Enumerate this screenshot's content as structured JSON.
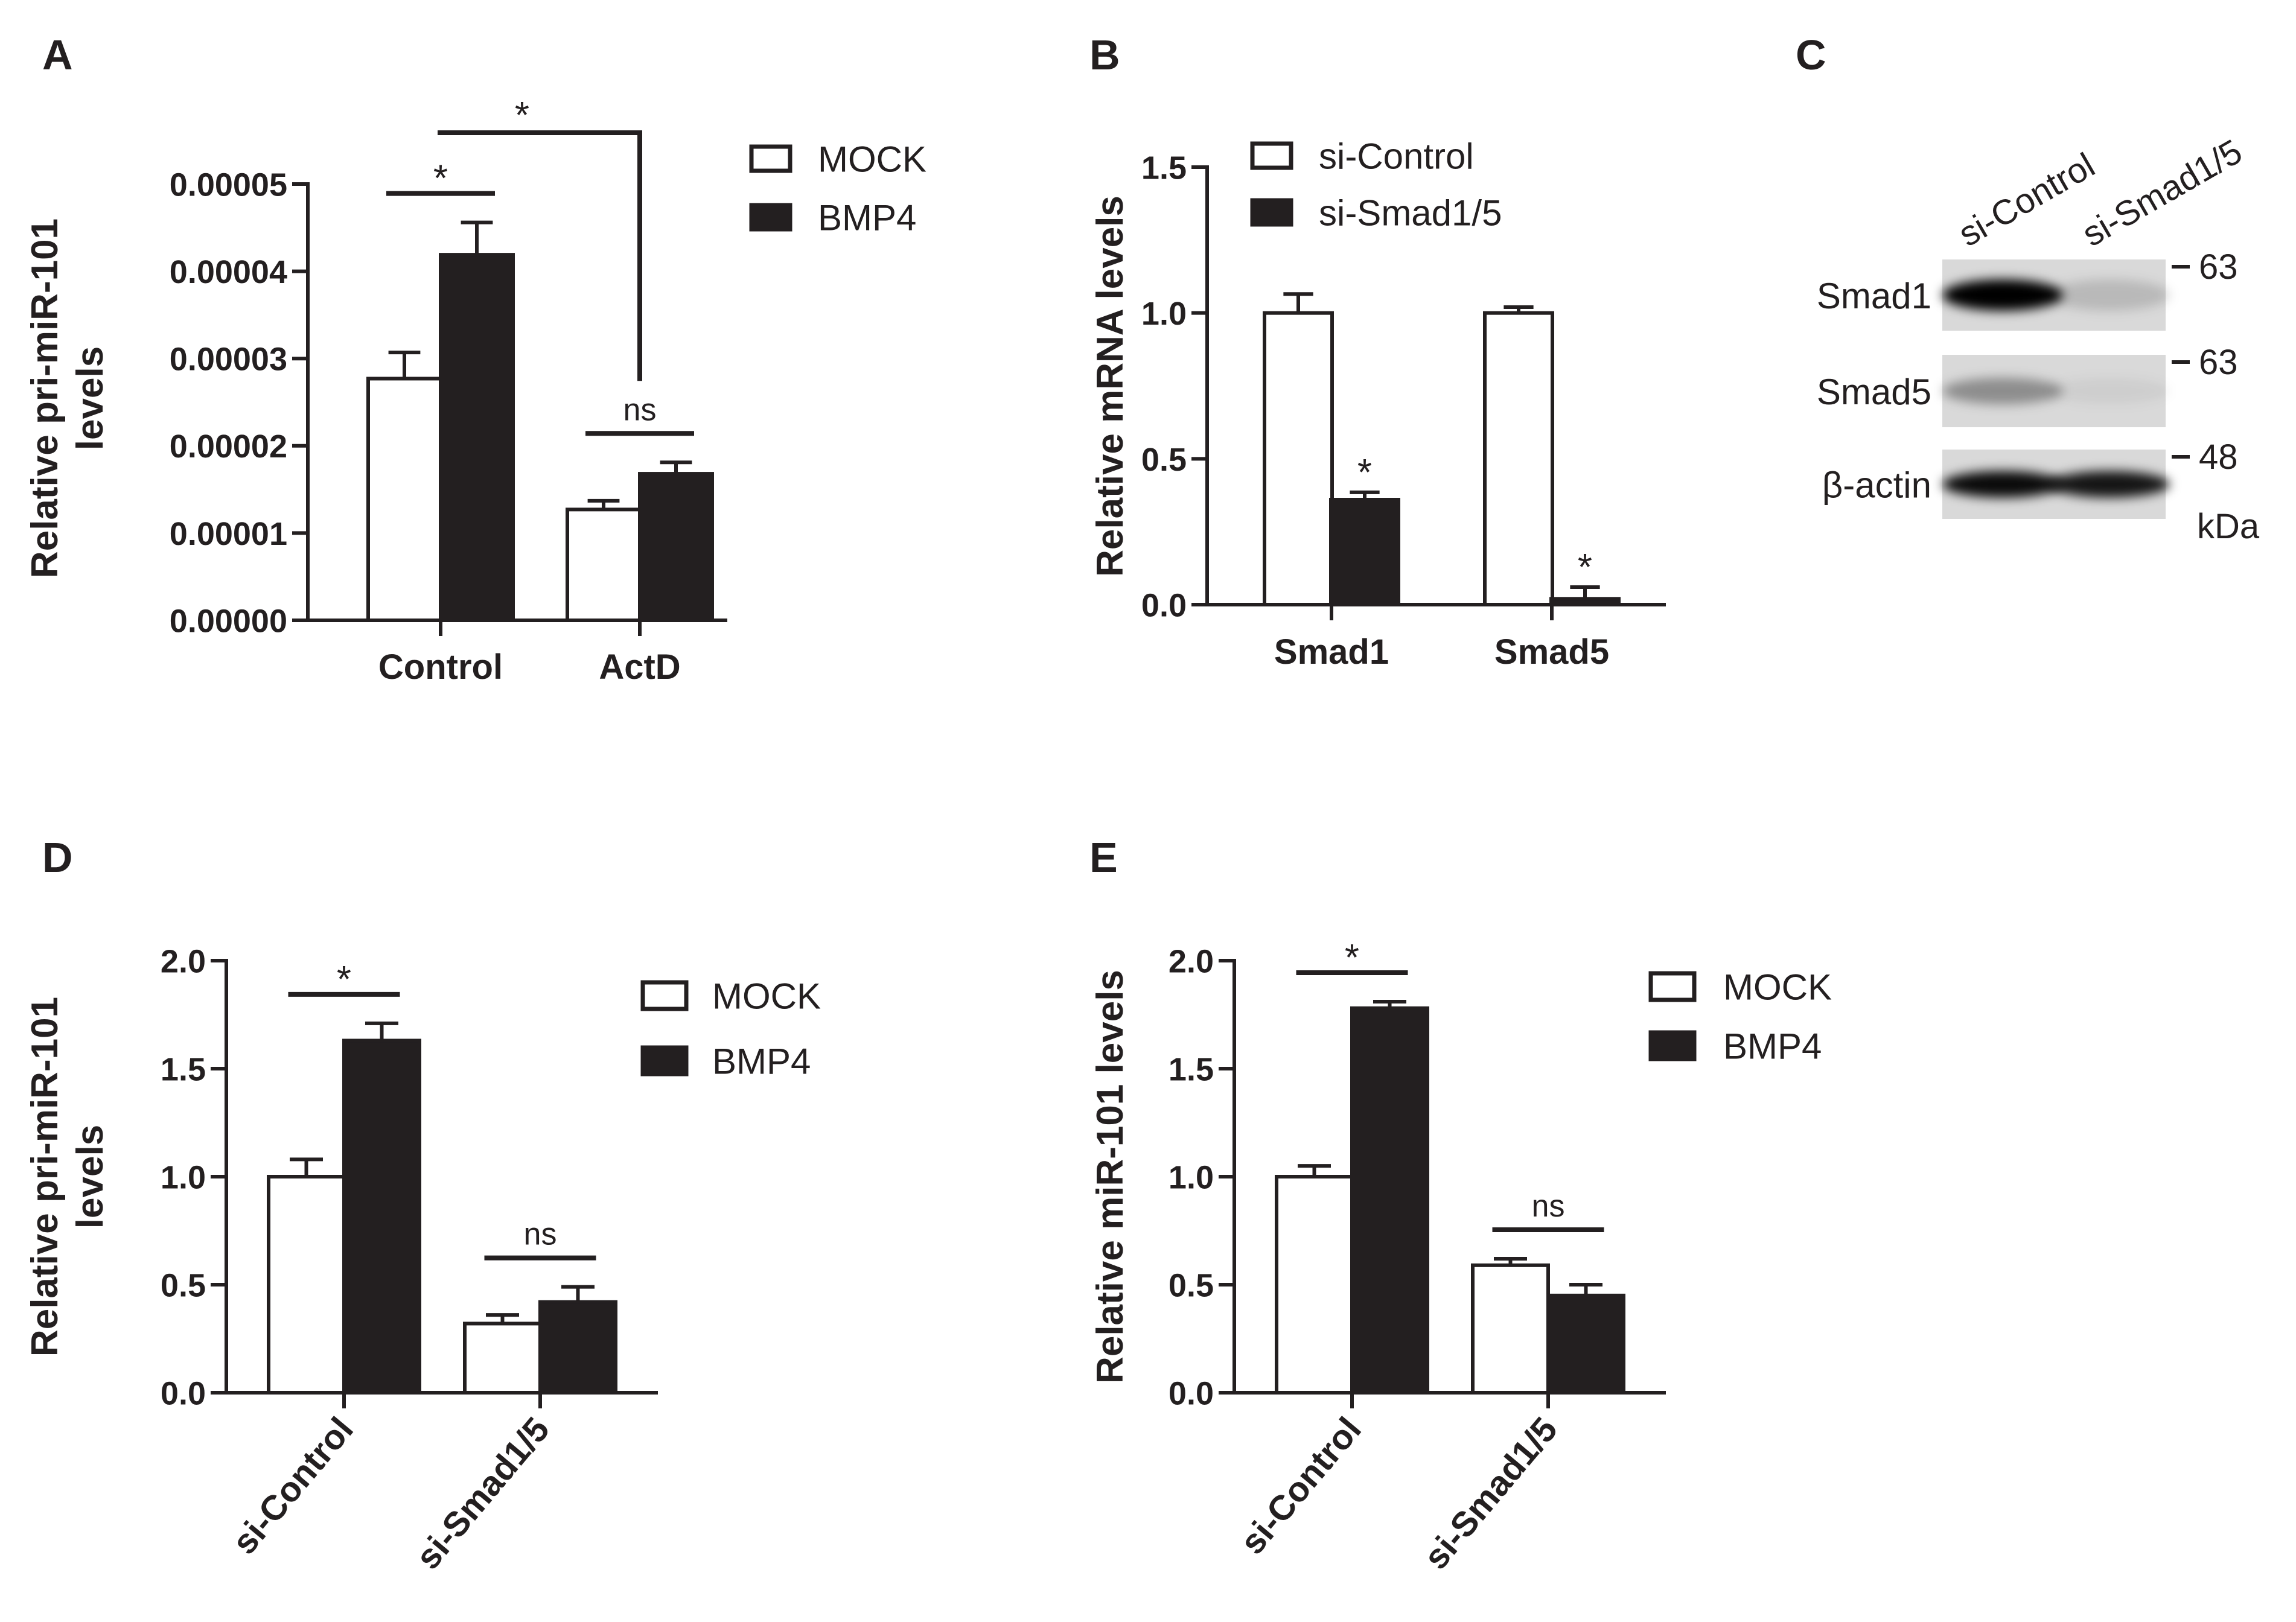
{
  "colors": {
    "filled": "#231f20",
    "open": "#ffffff",
    "stroke": "#231f20",
    "blot_bg": "#d9d9d9"
  },
  "chart_data": [
    {
      "id": "A",
      "panel_label": "A",
      "type": "bar",
      "ylabel": [
        "Relative pri-miR-101",
        "levels"
      ],
      "ylim": [
        0,
        5e-05
      ],
      "yticks": [
        0,
        1e-05,
        2e-05,
        3e-05,
        4e-05,
        5e-05
      ],
      "yticklabels": [
        "0.00000",
        "0.00001",
        "0.00002",
        "0.00003",
        "0.00004",
        "0.00005"
      ],
      "categories": [
        "Control",
        "ActD"
      ],
      "series": [
        {
          "name": "MOCK",
          "fill": "open",
          "values": [
            2.77e-05,
            1.27e-05
          ],
          "errors": [
            3e-06,
            1e-06
          ]
        },
        {
          "name": "BMP4",
          "fill": "filled",
          "values": [
            4.19e-05,
            1.68e-05
          ],
          "errors": [
            3.7e-06,
            1.3e-06
          ]
        }
      ],
      "significance": [
        {
          "label": "*",
          "kind": "pair",
          "category": 0
        },
        {
          "label": "ns",
          "kind": "pair",
          "category": 1
        },
        {
          "label": "*",
          "kind": "bracket",
          "from_category": 0,
          "to_category": 1
        }
      ]
    },
    {
      "id": "B",
      "panel_label": "B",
      "type": "bar",
      "ylabel": [
        "Relative mRNA levels"
      ],
      "ylim": [
        0,
        1.5
      ],
      "yticks": [
        0,
        0.5,
        1.0,
        1.5
      ],
      "yticklabels": [
        "0.0",
        "0.5",
        "1.0",
        "1.5"
      ],
      "categories": [
        "Smad1",
        "Smad5"
      ],
      "series": [
        {
          "name": "si-Control",
          "fill": "open",
          "values": [
            1.0,
            1.0
          ],
          "errors": [
            0.065,
            0.02
          ]
        },
        {
          "name": "si-Smad1/5",
          "fill": "filled",
          "values": [
            0.36,
            0.02
          ],
          "errors": [
            0.025,
            0.04
          ]
        }
      ],
      "significance": [
        {
          "label": "*",
          "kind": "bar",
          "category": 0,
          "series": 1
        },
        {
          "label": "*",
          "kind": "bar",
          "category": 1,
          "series": 1
        }
      ]
    },
    {
      "id": "D",
      "panel_label": "D",
      "type": "bar",
      "ylabel": [
        "Relative pri-miR-101",
        "levels"
      ],
      "ylim": [
        0,
        2.0
      ],
      "yticks": [
        0,
        0.5,
        1.0,
        1.5,
        2.0
      ],
      "yticklabels": [
        "0.0",
        "0.5",
        "1.0",
        "1.5",
        "2.0"
      ],
      "categories": [
        "si-Control",
        "si-Smad1/5"
      ],
      "series": [
        {
          "name": "MOCK",
          "fill": "open",
          "values": [
            1.0,
            0.32
          ],
          "errors": [
            0.08,
            0.04
          ]
        },
        {
          "name": "BMP4",
          "fill": "filled",
          "values": [
            1.63,
            0.42
          ],
          "errors": [
            0.08,
            0.07
          ]
        }
      ],
      "significance": [
        {
          "label": "*",
          "kind": "pair",
          "category": 0
        },
        {
          "label": "ns",
          "kind": "pair",
          "category": 1
        }
      ]
    },
    {
      "id": "E",
      "panel_label": "E",
      "type": "bar",
      "ylabel": [
        "Relative miR-101 levels"
      ],
      "ylim": [
        0,
        2.0
      ],
      "yticks": [
        0,
        0.5,
        1.0,
        1.5,
        2.0
      ],
      "yticklabels": [
        "0.0",
        "0.5",
        "1.0",
        "1.5",
        "2.0"
      ],
      "categories": [
        "si-Control",
        "si-Smad1/5"
      ],
      "series": [
        {
          "name": "MOCK",
          "fill": "open",
          "values": [
            1.0,
            0.59
          ],
          "errors": [
            0.05,
            0.03
          ]
        },
        {
          "name": "BMP4",
          "fill": "filled",
          "values": [
            1.78,
            0.45
          ],
          "errors": [
            0.03,
            0.05
          ]
        }
      ],
      "significance": [
        {
          "label": "*",
          "kind": "pair",
          "category": 0
        },
        {
          "label": "ns",
          "kind": "pair",
          "category": 1
        }
      ]
    }
  ],
  "blot": {
    "panel_label": "C",
    "lanes": [
      "si-Control",
      "si-Smad1/5"
    ],
    "rows": [
      {
        "name": "Smad1",
        "marker": "63",
        "band_intensity": [
          1.0,
          0.15
        ]
      },
      {
        "name": "Smad5",
        "marker": "63",
        "band_intensity": [
          0.35,
          0.05
        ]
      },
      {
        "name": "β-actin",
        "marker": "48",
        "band_intensity": [
          0.95,
          0.9
        ]
      }
    ],
    "unit": "kDa"
  }
}
